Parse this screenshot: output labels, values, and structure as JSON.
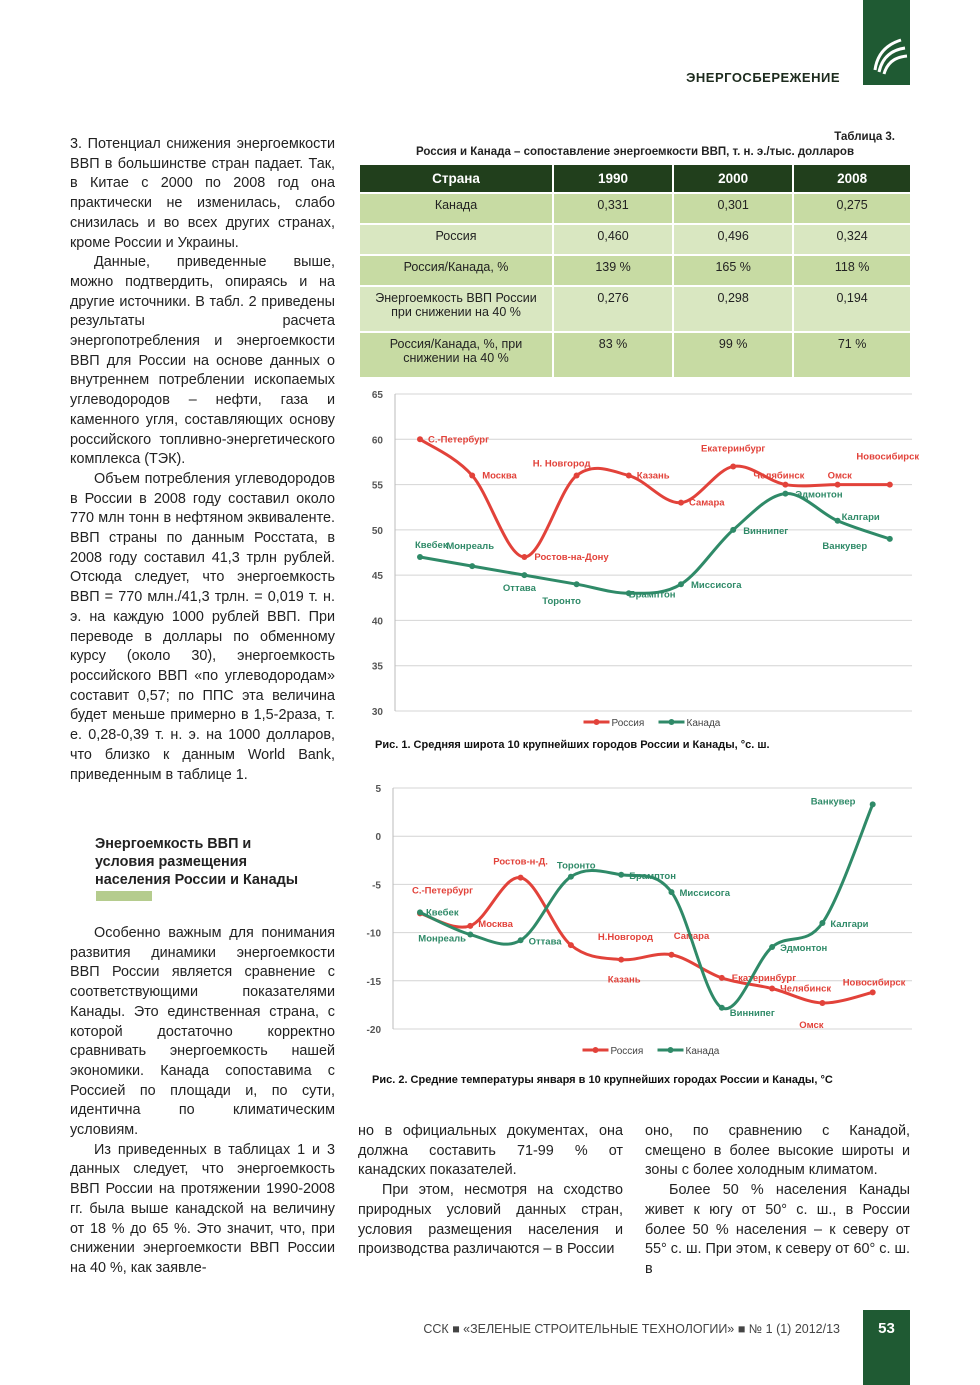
{
  "header": {
    "section": "ЭНЕРГОСБЕРЕЖЕНИЕ"
  },
  "article": {
    "col1_paragraphs": [
      "3. Потенциал снижения энергоемкости ВВП в большинстве стран падает. Так, в Китае с 2000 по 2008 год она практически не изменилась, слабо снизилась и во всех других странах, кроме России и Украины.",
      "Данные, приведенные выше, можно подтвердить, опираясь и на другие источники. В табл. 2 приведены результаты расчета энергопотребления и энергоемкости ВВП для России на основе данных о внутреннем потреблении ископаемых углеводородов – нефти, газа и каменного угля, составляющих основу российского топливно-энергетического комплекса (ТЭК).",
      "Объем потребления углеводородов в России в 2008 году составил около 770 млн тонн в нефтяном эквиваленте. ВВП страны по данным Росстата, в 2008 году составил 41,3 трлн рублей. Отсюда следует, что энергоемкость ВВП = 770 млн./41,3 трлн. = 0,019 т. н. э. на каждую 1000 рублей ВВП. При переводе в доллары по обменному курсу (около 30), энергоемкость российского ВВП «по углеводородам» составит 0,57; по ППС эта величина будет меньше примерно в 1,5-2раза, т. е. 0,28-0,39 т. н. э. на 1000 долларов, что близко к данным World Bank, приведенным в таблице 1."
    ],
    "subheading": "Энергоемкость ВВП и условия размещения населения России и Канады",
    "col1_after": [
      "Особенно важным для понимания развития динамики энергоемкости ВВП России является сравнение с соответствующими показателями Канады. Это единственная страна, с которой достаточно корректно сравнивать энергоемкость нашей экономики. Канада сопоставима с Россией по площади и, по сути, идентична по климатическим условиям.",
      "Из приведенных в таблицах 1 и 3 данных следует, что энергоемкость ВВП России на протяжении 1990-2008 гг. была выше канадской на величину от 18 % до 65 %. Это значит, что, при снижении энергоемкости ВВП России на 40 %, как заявле-"
    ],
    "col2": [
      "но в официальных документах, она должна составить 71-99 % от канадских показателей.",
      "При этом, несмотря на сходство природных условий данных стран, условия размещения населения и производства различаются – в России"
    ],
    "col3": [
      "оно, по сравнению с Канадой, смещено в более высокие широты и зоны с более холодным климатом.",
      "Более 50 % населения Канады живет к югу от 50° с. ш., в России более 50 % населения – к северу от 55° с. ш. При этом, к северу от 60° с. ш. в"
    ]
  },
  "table": {
    "label": "Таблица 3.",
    "title": "Россия и Канада – сопоставление энергоемкости ВВП, т. н. э./тыс. долларов",
    "header": [
      "Страна",
      "1990",
      "2000",
      "2008"
    ],
    "rows": [
      [
        "Канада",
        "0,331",
        "0,301",
        "0,275"
      ],
      [
        "Россия",
        "0,460",
        "0,496",
        "0,324"
      ],
      [
        "Россия/Канада, %",
        "139 %",
        "165 %",
        "118 %"
      ],
      [
        "Энергоемкость ВВП России при снижении на 40 %",
        "0,276",
        "0,298",
        "0,194"
      ],
      [
        "Россия/Канада, %, при снижении на 40 %",
        "83 %",
        "99 %",
        "71 %"
      ]
    ]
  },
  "chart_data": [
    {
      "type": "line",
      "title": "Рис. 1. Средняя широта 10 крупнейших городов России и Канады, °с. ш.",
      "ylim": [
        30,
        65
      ],
      "yticks": [
        30,
        35,
        40,
        45,
        50,
        55,
        60,
        65
      ],
      "grid": true,
      "legend": "bottom",
      "series": [
        {
          "name": "Россия",
          "color": "#e2423a",
          "values": [
            60,
            56,
            47,
            56,
            56,
            53,
            57,
            55,
            55,
            55
          ],
          "labels": [
            "С.-Петербург",
            "Москва",
            "Ростов-на-Дону",
            "Н. Новгород",
            "Казань",
            "Самара",
            "Екатеринбург",
            "Челябинск",
            "Омск",
            "Новосибирск"
          ]
        },
        {
          "name": "Канада",
          "color": "#2f8a68",
          "values": [
            47,
            46,
            45,
            44,
            43,
            44,
            50,
            54,
            51,
            49
          ],
          "labels": [
            "Квебек",
            "Монреаль",
            "Оттава",
            "Торонто",
            "Брамптон",
            "Миссисога",
            "Виннипег",
            "Эдмонтон",
            "Калгари",
            "Ванкувер"
          ]
        }
      ]
    },
    {
      "type": "line",
      "title": "Рис. 2. Средние температуры января в 10 крупнейших городах России и Канады, °С",
      "ylim": [
        -20,
        5
      ],
      "yticks": [
        -20,
        -15,
        -10,
        -5,
        0,
        5
      ],
      "grid": true,
      "legend": "bottom",
      "series": [
        {
          "name": "Россия",
          "color": "#e2423a",
          "values": [
            -8,
            -9.3,
            -4.3,
            -11.3,
            -12.8,
            -12.3,
            -14.7,
            -15.8,
            -17.3,
            -16.2
          ],
          "labels": [
            "С.-Петербург",
            "Москва",
            "Ростов-н-Д.",
            "Н.Новгород",
            "Казань",
            "Самара",
            "Екатеринбург",
            "Челябинск",
            "Омск",
            "Новосибирск"
          ]
        },
        {
          "name": "Канада",
          "color": "#2f8a68",
          "values": [
            -7.9,
            -10.2,
            -10.8,
            -4.2,
            -4,
            -5.8,
            -17.8,
            -11.5,
            -9,
            3.3
          ],
          "labels": [
            "Квебек",
            "Монреаль",
            "Оттава",
            "Торонто",
            "Брамптон",
            "Миссисога",
            "Виннипег",
            "Эдмонтон",
            "Калгари",
            "Ванкувер"
          ]
        }
      ]
    }
  ],
  "footer": {
    "journal": "ССК ■ «ЗЕЛЕНЫЕ СТРОИТЕЛЬНЫЕ ТЕХНОЛОГИИ» ■ № 1 (1) 2012/13",
    "page": "53"
  }
}
